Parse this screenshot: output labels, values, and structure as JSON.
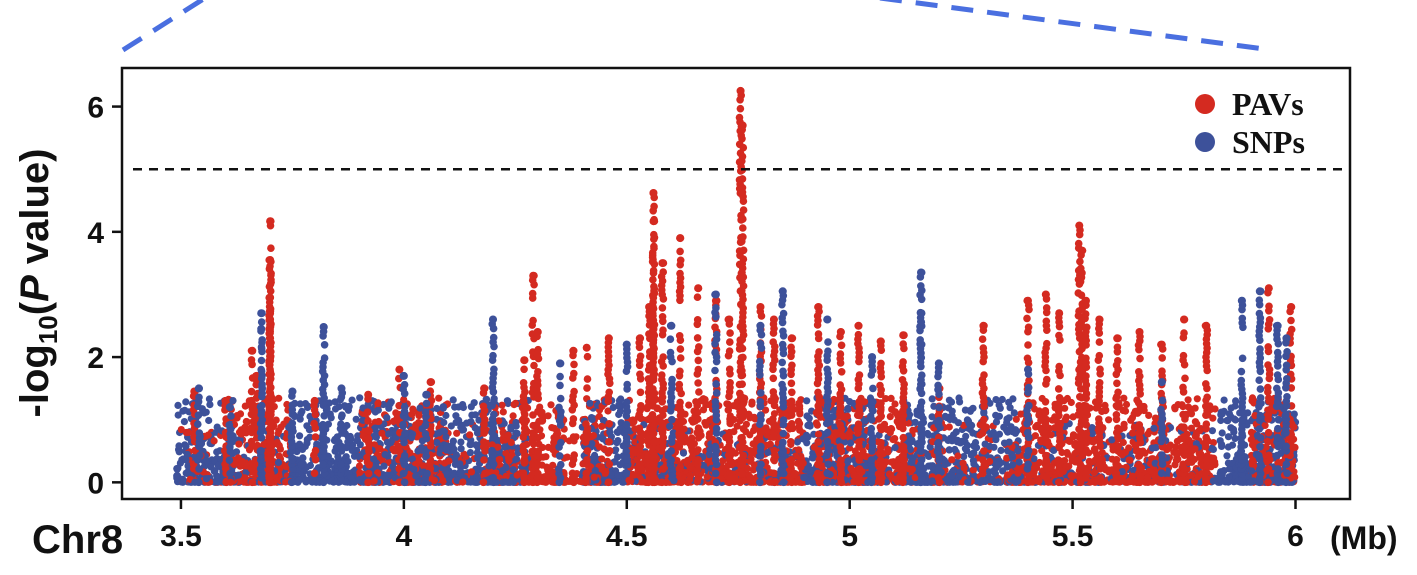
{
  "chart_data": {
    "type": "scatter",
    "title": "",
    "chromosome_label": "Chr8",
    "x_unit_label": "(Mb)",
    "ylabel_prefix": "-log",
    "ylabel_sub": "10",
    "ylabel_open": "(",
    "ylabel_italic": "P",
    "ylabel_suffix": " value)",
    "xlim": [
      3.37,
      6.12
    ],
    "ylim": [
      -0.25,
      6.6
    ],
    "xticks": [
      3.5,
      4,
      4.5,
      5,
      5.5,
      6
    ],
    "xtick_labels": [
      "3.5",
      "4",
      "4.5",
      "5",
      "5.5",
      "6"
    ],
    "yticks": [
      0,
      2,
      4,
      6
    ],
    "ytick_labels": [
      "0",
      "2",
      "4",
      "6"
    ],
    "threshold": 5,
    "legend_position": "top-right",
    "grid": false,
    "series": [
      {
        "name": "PAVs",
        "color": "#d42a20",
        "peaks": [
          [
            3.53,
            1.45
          ],
          [
            3.6,
            1.3
          ],
          [
            3.66,
            2.1
          ],
          [
            3.67,
            1.7
          ],
          [
            3.7,
            4.17
          ],
          [
            3.7,
            3.55
          ],
          [
            3.7,
            2.95
          ],
          [
            3.7,
            2.6
          ],
          [
            3.8,
            1.3
          ],
          [
            3.92,
            1.4
          ],
          [
            3.99,
            1.8
          ],
          [
            4.06,
            1.6
          ],
          [
            4.18,
            1.5
          ],
          [
            4.27,
            1.95
          ],
          [
            4.29,
            3.3
          ],
          [
            4.3,
            2.4
          ],
          [
            4.38,
            2.1
          ],
          [
            4.41,
            2.15
          ],
          [
            4.46,
            2.3
          ],
          [
            4.53,
            2.3
          ],
          [
            4.55,
            2.8
          ],
          [
            4.56,
            4.62
          ],
          [
            4.56,
            4.17
          ],
          [
            4.58,
            3.5
          ],
          [
            4.62,
            3.9
          ],
          [
            4.66,
            3.1
          ],
          [
            4.7,
            2.9
          ],
          [
            4.73,
            2.6
          ],
          [
            4.755,
            6.25
          ],
          [
            4.76,
            5.7
          ],
          [
            4.8,
            2.8
          ],
          [
            4.83,
            2.6
          ],
          [
            4.87,
            2.3
          ],
          [
            4.93,
            2.8
          ],
          [
            4.98,
            2.4
          ],
          [
            5.02,
            2.5
          ],
          [
            5.07,
            2.25
          ],
          [
            5.12,
            2.35
          ],
          [
            5.2,
            1.5
          ],
          [
            5.3,
            2.5
          ],
          [
            5.4,
            2.9
          ],
          [
            5.44,
            3.0
          ],
          [
            5.47,
            2.7
          ],
          [
            5.515,
            4.1
          ],
          [
            5.52,
            3.7
          ],
          [
            5.53,
            2.9
          ],
          [
            5.56,
            2.6
          ],
          [
            5.6,
            2.3
          ],
          [
            5.65,
            2.4
          ],
          [
            5.7,
            2.2
          ],
          [
            5.75,
            2.6
          ],
          [
            5.8,
            2.5
          ],
          [
            5.94,
            3.1
          ],
          [
            5.99,
            2.8
          ]
        ],
        "bands": [
          [
            3.6,
            3.75
          ],
          [
            3.9,
            4.1
          ],
          [
            4.2,
            4.28
          ],
          [
            4.28,
            4.36
          ],
          [
            4.4,
            4.46
          ],
          [
            4.5,
            4.62
          ],
          [
            4.62,
            4.9
          ],
          [
            4.92,
            5.12
          ],
          [
            5.37,
            5.82
          ],
          [
            5.9,
            6.0
          ]
        ],
        "sparse": [
          [
            3.5,
            3.6
          ],
          [
            4.1,
            4.2
          ],
          [
            4.36,
            4.4
          ],
          [
            5.12,
            5.37
          ]
        ]
      },
      {
        "name": "SNPs",
        "color": "#3d519a",
        "peaks": [
          [
            3.54,
            1.5
          ],
          [
            3.61,
            1.2
          ],
          [
            3.68,
            2.7
          ],
          [
            3.68,
            2.45
          ],
          [
            3.75,
            1.45
          ],
          [
            3.82,
            2.48
          ],
          [
            3.86,
            1.5
          ],
          [
            4.0,
            1.7
          ],
          [
            4.05,
            1.4
          ],
          [
            4.2,
            2.6
          ],
          [
            4.35,
            1.9
          ],
          [
            4.5,
            2.2
          ],
          [
            4.6,
            2.5
          ],
          [
            4.7,
            3.0
          ],
          [
            4.8,
            2.5
          ],
          [
            4.85,
            3.05
          ],
          [
            4.95,
            2.6
          ],
          [
            5.05,
            2.0
          ],
          [
            5.16,
            3.35
          ],
          [
            5.16,
            2.7
          ],
          [
            5.2,
            1.9
          ],
          [
            5.4,
            1.8
          ],
          [
            5.7,
            1.6
          ],
          [
            5.88,
            2.9
          ],
          [
            5.92,
            3.05
          ],
          [
            5.96,
            2.5
          ],
          [
            5.98,
            2.3
          ]
        ],
        "bands": [
          [
            3.49,
            3.62
          ],
          [
            3.74,
            4.28
          ],
          [
            4.4,
            4.5
          ],
          [
            4.9,
            5.05
          ],
          [
            5.12,
            5.38
          ],
          [
            5.83,
            6.0
          ]
        ],
        "sparse": [
          [
            3.62,
            3.74
          ],
          [
            4.5,
            4.9
          ],
          [
            5.05,
            5.12
          ],
          [
            5.38,
            5.83
          ]
        ]
      }
    ]
  }
}
